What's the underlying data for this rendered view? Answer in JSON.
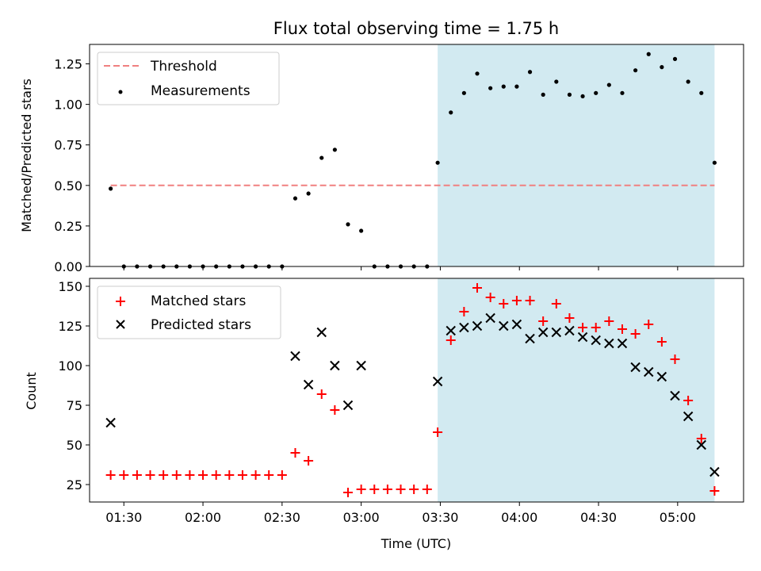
{
  "chart_data": [
    {
      "type": "scatter",
      "title": "Flux total observing time = 1.75 h",
      "xlabel": "",
      "ylabel": "Matched/Predicted stars",
      "xlim": [
        "01:17",
        "05:25"
      ],
      "ylim": [
        0,
        1.37
      ],
      "yticks": [
        0.0,
        0.25,
        0.5,
        0.75,
        1.0,
        1.25
      ],
      "ytick_labels": [
        "0.00",
        "0.25",
        "0.50",
        "0.75",
        "1.00",
        "1.25"
      ],
      "grid": false,
      "legend": "top-left",
      "shaded_region": {
        "x": [
          "03:29",
          "05:14"
        ],
        "color": "#add8e6"
      },
      "threshold": {
        "name": "Threshold",
        "y": 0.5,
        "x": [
          "01:25",
          "05:14"
        ],
        "color": "#f08080",
        "style": "dashed"
      },
      "series": [
        {
          "name": "Measurements",
          "marker": "dot",
          "color": "#000000",
          "points": [
            [
              "01:25",
              0.48
            ],
            [
              "01:30",
              0.0
            ],
            [
              "01:35",
              0.0
            ],
            [
              "01:40",
              0.0
            ],
            [
              "01:45",
              0.0
            ],
            [
              "01:50",
              0.0
            ],
            [
              "01:55",
              0.0
            ],
            [
              "02:00",
              0.0
            ],
            [
              "02:05",
              0.0
            ],
            [
              "02:10",
              0.0
            ],
            [
              "02:15",
              0.0
            ],
            [
              "02:20",
              0.0
            ],
            [
              "02:25",
              0.0
            ],
            [
              "02:30",
              0.0
            ],
            [
              "02:35",
              0.42
            ],
            [
              "02:40",
              0.45
            ],
            [
              "02:45",
              0.67
            ],
            [
              "02:50",
              0.72
            ],
            [
              "02:55",
              0.26
            ],
            [
              "03:00",
              0.22
            ],
            [
              "03:05",
              0.0
            ],
            [
              "03:10",
              0.0
            ],
            [
              "03:15",
              0.0
            ],
            [
              "03:20",
              0.0
            ],
            [
              "03:25",
              0.0
            ],
            [
              "03:29",
              0.64
            ],
            [
              "03:34",
              0.95
            ],
            [
              "03:39",
              1.07
            ],
            [
              "03:44",
              1.19
            ],
            [
              "03:49",
              1.1
            ],
            [
              "03:54",
              1.11
            ],
            [
              "03:59",
              1.11
            ],
            [
              "04:04",
              1.2
            ],
            [
              "04:09",
              1.06
            ],
            [
              "04:14",
              1.14
            ],
            [
              "04:19",
              1.06
            ],
            [
              "04:24",
              1.05
            ],
            [
              "04:29",
              1.07
            ],
            [
              "04:34",
              1.12
            ],
            [
              "04:39",
              1.07
            ],
            [
              "04:44",
              1.21
            ],
            [
              "04:49",
              1.31
            ],
            [
              "04:54",
              1.23
            ],
            [
              "04:59",
              1.28
            ],
            [
              "05:04",
              1.14
            ],
            [
              "05:09",
              1.07
            ],
            [
              "05:14",
              0.64
            ]
          ]
        }
      ]
    },
    {
      "type": "scatter",
      "title": "",
      "xlabel": "Time (UTC)",
      "ylabel": "Count",
      "xlim": [
        "01:17",
        "05:25"
      ],
      "ylim": [
        14,
        155
      ],
      "xticks": [
        "01:30",
        "02:00",
        "02:30",
        "03:00",
        "03:30",
        "04:00",
        "04:30",
        "05:00"
      ],
      "yticks": [
        25,
        50,
        75,
        100,
        125,
        150
      ],
      "ytick_labels": [
        "25",
        "50",
        "75",
        "100",
        "125",
        "150"
      ],
      "grid": false,
      "legend": "top-left",
      "shaded_region": {
        "x": [
          "03:29",
          "05:14"
        ],
        "color": "#add8e6"
      },
      "series": [
        {
          "name": "Matched stars",
          "marker": "plus",
          "color": "#ff0000",
          "points": [
            [
              "01:25",
              31
            ],
            [
              "01:30",
              31
            ],
            [
              "01:35",
              31
            ],
            [
              "01:40",
              31
            ],
            [
              "01:45",
              31
            ],
            [
              "01:50",
              31
            ],
            [
              "01:55",
              31
            ],
            [
              "02:00",
              31
            ],
            [
              "02:05",
              31
            ],
            [
              "02:10",
              31
            ],
            [
              "02:15",
              31
            ],
            [
              "02:20",
              31
            ],
            [
              "02:25",
              31
            ],
            [
              "02:30",
              31
            ],
            [
              "02:35",
              45
            ],
            [
              "02:40",
              40
            ],
            [
              "02:45",
              82
            ],
            [
              "02:50",
              72
            ],
            [
              "02:55",
              20
            ],
            [
              "03:00",
              22
            ],
            [
              "03:05",
              22
            ],
            [
              "03:10",
              22
            ],
            [
              "03:15",
              22
            ],
            [
              "03:20",
              22
            ],
            [
              "03:25",
              22
            ],
            [
              "03:29",
              58
            ],
            [
              "03:34",
              116
            ],
            [
              "03:39",
              134
            ],
            [
              "03:44",
              149
            ],
            [
              "03:49",
              143
            ],
            [
              "03:54",
              139
            ],
            [
              "03:59",
              141
            ],
            [
              "04:04",
              141
            ],
            [
              "04:09",
              128
            ],
            [
              "04:14",
              139
            ],
            [
              "04:19",
              130
            ],
            [
              "04:24",
              124
            ],
            [
              "04:29",
              124
            ],
            [
              "04:34",
              128
            ],
            [
              "04:39",
              123
            ],
            [
              "04:44",
              120
            ],
            [
              "04:49",
              126
            ],
            [
              "04:54",
              115
            ],
            [
              "04:59",
              104
            ],
            [
              "05:04",
              78
            ],
            [
              "05:09",
              54
            ],
            [
              "05:14",
              21
            ]
          ]
        },
        {
          "name": "Predicted stars",
          "marker": "x",
          "color": "#000000",
          "points": [
            [
              "01:25",
              64
            ],
            [
              "02:35",
              106
            ],
            [
              "02:40",
              88
            ],
            [
              "02:45",
              121
            ],
            [
              "02:50",
              100
            ],
            [
              "02:55",
              75
            ],
            [
              "03:00",
              100
            ],
            [
              "03:29",
              90
            ],
            [
              "03:34",
              122
            ],
            [
              "03:39",
              124
            ],
            [
              "03:44",
              125
            ],
            [
              "03:49",
              130
            ],
            [
              "03:54",
              125
            ],
            [
              "03:59",
              126
            ],
            [
              "04:04",
              117
            ],
            [
              "04:09",
              121
            ],
            [
              "04:14",
              121
            ],
            [
              "04:19",
              122
            ],
            [
              "04:24",
              118
            ],
            [
              "04:29",
              116
            ],
            [
              "04:34",
              114
            ],
            [
              "04:39",
              114
            ],
            [
              "04:44",
              99
            ],
            [
              "04:49",
              96
            ],
            [
              "04:54",
              93
            ],
            [
              "04:59",
              81
            ],
            [
              "05:04",
              68
            ],
            [
              "05:09",
              50
            ],
            [
              "05:14",
              33
            ]
          ]
        }
      ]
    }
  ]
}
